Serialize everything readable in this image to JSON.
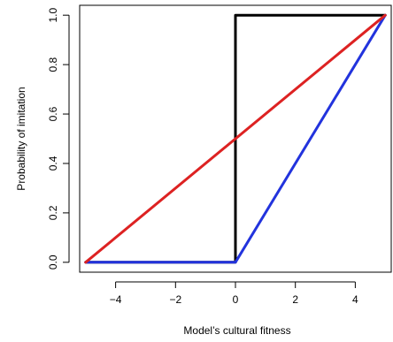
{
  "chart_data": {
    "type": "line",
    "title": "",
    "xlabel": "Model’s cultural fitness",
    "ylabel": "Probability of imitation",
    "xlim": [
      -5.2,
      5.2
    ],
    "ylim": [
      -0.04,
      1.04
    ],
    "xticks": [
      -4,
      -2,
      0,
      2,
      4
    ],
    "xtick_labels": [
      "−4",
      "−2",
      "0",
      "2",
      "4"
    ],
    "yticks": [
      0.0,
      0.2,
      0.4,
      0.6,
      0.8,
      1.0
    ],
    "ytick_labels": [
      "0.0",
      "0.2",
      "0.4",
      "0.6",
      "0.8",
      "1.0"
    ],
    "grid": false,
    "legend": "none",
    "series": [
      {
        "color": "#000000",
        "x": [
          -5,
          0,
          0,
          5
        ],
        "y": [
          0,
          0,
          1,
          1
        ]
      },
      {
        "color": "#2233dd",
        "x": [
          -5,
          0,
          5
        ],
        "y": [
          0,
          0,
          1
        ]
      },
      {
        "color": "#dd2222",
        "x": [
          -5,
          5
        ],
        "y": [
          0,
          1
        ]
      }
    ]
  }
}
